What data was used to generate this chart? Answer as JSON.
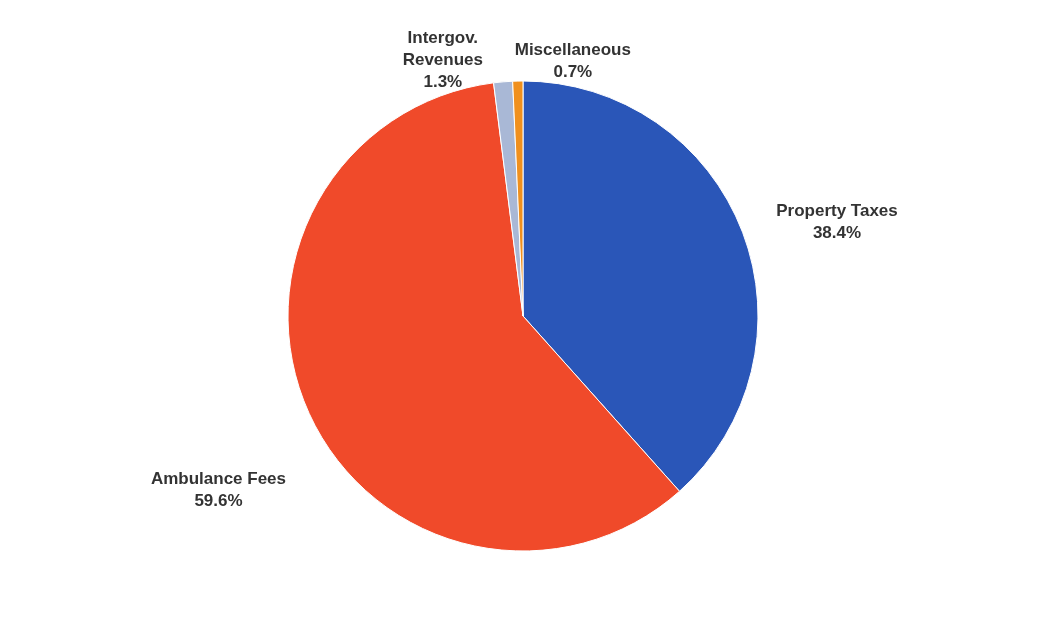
{
  "chart_data": {
    "type": "pie",
    "categories": [
      "Property Taxes",
      "Ambulance Fees",
      "Intergov. Revenues",
      "Miscellaneous"
    ],
    "values": [
      38.4,
      59.6,
      1.3,
      0.7
    ],
    "value_labels": [
      "38.4%",
      "59.6%",
      "1.3%",
      "0.7%"
    ],
    "colors": [
      "#2a56b8",
      "#f04a2a",
      "#a9b8d6",
      "#f0901e"
    ]
  }
}
